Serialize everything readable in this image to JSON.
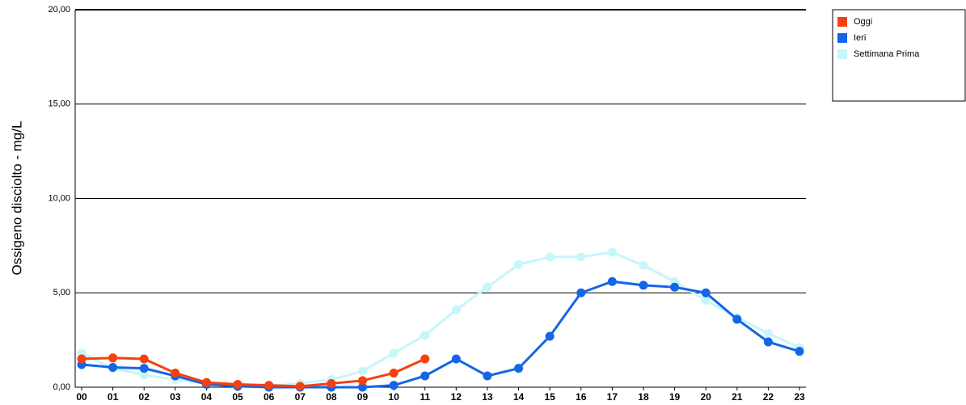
{
  "chart_data": {
    "type": "line",
    "y_label": "Ossigeno disciolto - mg/L",
    "categories": [
      "00",
      "01",
      "02",
      "03",
      "04",
      "05",
      "06",
      "07",
      "08",
      "09",
      "10",
      "11",
      "12",
      "13",
      "14",
      "15",
      "16",
      "17",
      "18",
      "19",
      "20",
      "21",
      "22",
      "23"
    ],
    "series": [
      {
        "name": "Oggi",
        "color": "#f5400f",
        "values": [
          1.5,
          1.55,
          1.5,
          0.75,
          0.25,
          0.15,
          0.1,
          0.05,
          0.2,
          0.35,
          0.75,
          1.5,
          null,
          null,
          null,
          null,
          null,
          null,
          null,
          null,
          null,
          null,
          null,
          null
        ]
      },
      {
        "name": "Ieri",
        "color": "#1466e6",
        "values": [
          1.2,
          1.05,
          1.0,
          0.6,
          0.15,
          0.05,
          0.0,
          0.0,
          0.0,
          0.0,
          0.1,
          0.6,
          1.5,
          0.6,
          1.0,
          2.7,
          5.0,
          5.6,
          5.4,
          5.3,
          5.0,
          3.6,
          2.4,
          1.9
        ]
      },
      {
        "name": "Settimana Prima",
        "color": "#c6f6fa",
        "values": [
          1.8,
          1.0,
          0.65,
          0.4,
          0.2,
          0.1,
          0.05,
          0.2,
          0.4,
          0.85,
          1.8,
          2.75,
          4.1,
          5.3,
          6.5,
          6.9,
          6.9,
          7.15,
          6.45,
          5.6,
          4.6,
          3.7,
          2.85,
          2.1
        ]
      }
    ],
    "ylim": [
      0,
      20
    ],
    "yticks": [
      {
        "value": 0,
        "label": "0,00"
      },
      {
        "value": 5,
        "label": "5,00"
      },
      {
        "value": 10,
        "label": "10,00"
      },
      {
        "value": 15,
        "label": "15,00"
      },
      {
        "value": 20,
        "label": "20,00"
      }
    ],
    "grid": true,
    "legend": "right"
  }
}
